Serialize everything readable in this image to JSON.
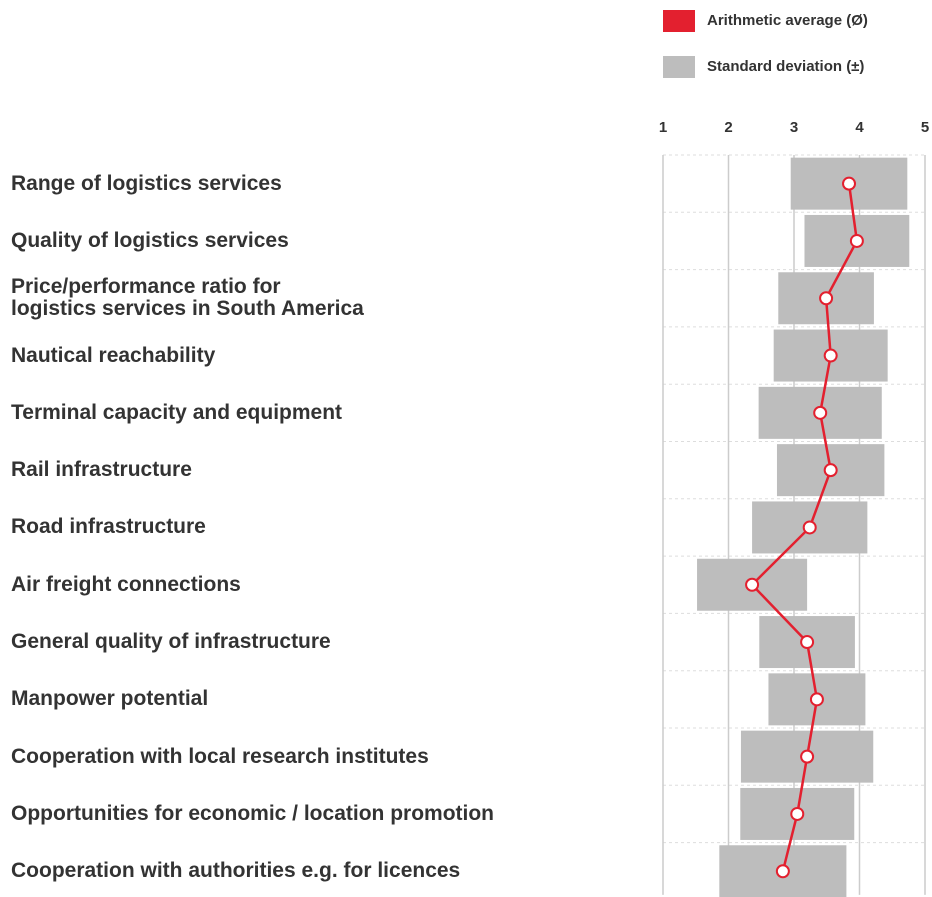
{
  "chart_data": {
    "type": "dot-range",
    "categories": [
      "Range of logistics services",
      "Quality of logistics services",
      "Price/performance ratio for\nlogistics services in South America",
      "Nautical reachability",
      "Terminal capacity and equipment",
      "Rail infrastructure",
      "Road infrastructure",
      "Air freight connections",
      "General quality of infrastructure",
      "Manpower potential",
      "Cooperation with local research institutes",
      "Opportunities for economic / location promotion",
      "Cooperation with authorities e.g. for licences"
    ],
    "series": [
      {
        "name": "Arithmetic average (Ø)",
        "color": "#e3202f",
        "values": [
          3.84,
          3.96,
          3.49,
          3.56,
          3.4,
          3.56,
          3.24,
          2.36,
          3.2,
          3.35,
          3.2,
          3.05,
          2.83
        ]
      },
      {
        "name": "Standard deviation (±)",
        "color": "#bdbdbd",
        "values": [
          0.89,
          0.8,
          0.73,
          0.87,
          0.94,
          0.82,
          0.88,
          0.84,
          0.73,
          0.74,
          1.01,
          0.87,
          0.97
        ]
      }
    ],
    "xlim": [
      1,
      5
    ],
    "xticks": [
      1,
      2,
      3,
      4,
      5
    ],
    "grid": true
  }
}
